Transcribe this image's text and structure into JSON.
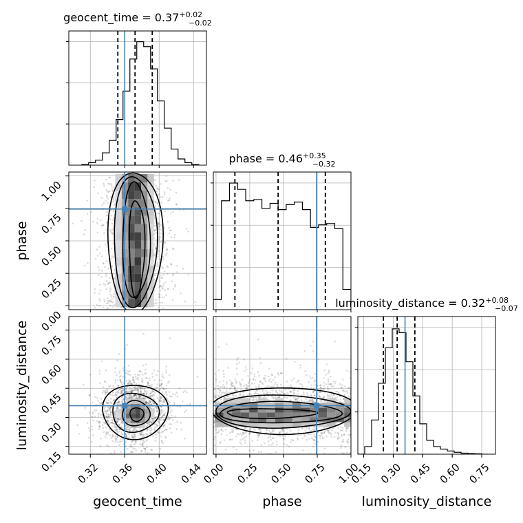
{
  "chart_data": {
    "type": "corner",
    "parameters": [
      {
        "name": "geocent_time",
        "truth": 0.36,
        "median": 0.37,
        "plus": "+0.02",
        "minus": "−0.02",
        "title": "geocent_time = 0.37",
        "xlim": [
          0.295,
          0.455
        ],
        "ticks": [
          0.32,
          0.36,
          0.4,
          0.44
        ],
        "tick_labels": [
          "0.32",
          "0.36",
          "0.40",
          "0.44"
        ],
        "quantiles": [
          0.352,
          0.372,
          0.392
        ]
      },
      {
        "name": "phase",
        "truth": 0.745,
        "median": 0.46,
        "plus": "+0.35",
        "minus": "−0.32",
        "title": "phase = 0.46",
        "xlim": [
          -0.02,
          1.0
        ],
        "ticks": [
          0.0,
          0.25,
          0.5,
          0.75,
          1.0
        ],
        "tick_labels": [
          "0.00",
          "0.25",
          "0.50",
          "0.75",
          "1.00"
        ],
        "quantiles": [
          0.14,
          0.46,
          0.81
        ]
      },
      {
        "name": "luminosity_distance",
        "truth": 0.36,
        "median": 0.32,
        "plus": "+0.08",
        "minus": "−0.07",
        "title": "luminosity_distance = 0.32",
        "xlim": [
          0.12,
          0.82
        ],
        "ticks": [
          0.15,
          0.3,
          0.45,
          0.6,
          0.75
        ],
        "tick_labels": [
          "0.15",
          "0.30",
          "0.45",
          "0.60",
          "0.75"
        ],
        "quantiles": [
          0.25,
          0.32,
          0.41
        ]
      }
    ],
    "histograms": {
      "geocent_time": {
        "bins": [
          0.31,
          0.318,
          0.326,
          0.334,
          0.342,
          0.35,
          0.358,
          0.366,
          0.374,
          0.382,
          0.39,
          0.398,
          0.406,
          0.414,
          0.422,
          0.43,
          0.438,
          0.446
        ],
        "values": [
          0.005,
          0.02,
          0.04,
          0.1,
          0.2,
          0.37,
          0.6,
          0.86,
          1.0,
          0.96,
          0.78,
          0.52,
          0.3,
          0.13,
          0.05,
          0.02,
          0.005
        ]
      },
      "phase": {
        "bins": [
          -0.02,
          0.04,
          0.1,
          0.16,
          0.22,
          0.28,
          0.34,
          0.4,
          0.46,
          0.52,
          0.58,
          0.64,
          0.7,
          0.76,
          0.82,
          0.88,
          0.94,
          1.0
        ],
        "values": [
          0.08,
          0.86,
          1.0,
          0.95,
          0.86,
          0.87,
          0.8,
          0.84,
          0.79,
          0.83,
          0.85,
          0.79,
          0.65,
          0.67,
          0.68,
          0.64,
          0.16
        ]
      },
      "luminosity_distance": {
        "bins": [
          0.12,
          0.155,
          0.19,
          0.225,
          0.26,
          0.295,
          0.33,
          0.365,
          0.4,
          0.435,
          0.47,
          0.505,
          0.54,
          0.575,
          0.61,
          0.645,
          0.68,
          0.715,
          0.75,
          0.785
        ],
        "values": [
          0.0,
          0.06,
          0.27,
          0.56,
          0.84,
          0.99,
          0.96,
          0.73,
          0.46,
          0.24,
          0.11,
          0.06,
          0.04,
          0.025,
          0.015,
          0.008,
          0.005,
          0.003,
          0.0
        ]
      }
    },
    "grid": true
  }
}
